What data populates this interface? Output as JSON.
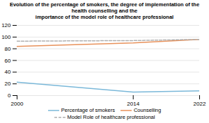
{
  "chart_data": {
    "type": "line",
    "title": "Evolution of the percentage of smokers, the degree of implementation of the health counselling and the\nimportance of the model role of healthcare professional",
    "x": [
      2000,
      2014,
      2022
    ],
    "series": [
      {
        "name": "Percentage of smokers",
        "color": "#7ab8d9",
        "line_style": "solid",
        "values": [
          23,
          6,
          8
        ]
      },
      {
        "name": "Counselling",
        "color": "#e8915a",
        "line_style": "solid",
        "values": [
          84,
          90,
          96
        ]
      },
      {
        "name": "Model Role of healthcare professional",
        "color": "#b0b0b0",
        "line_style": "dashed",
        "values": [
          93,
          94,
          96
        ]
      }
    ],
    "xlim": [
      2000,
      2022
    ],
    "xticks": [
      2000,
      2014,
      2022
    ],
    "ylim": [
      0,
      120
    ],
    "yticks": [
      0,
      20,
      40,
      60,
      80,
      100,
      120
    ],
    "grid": true,
    "legend": "bottom"
  }
}
